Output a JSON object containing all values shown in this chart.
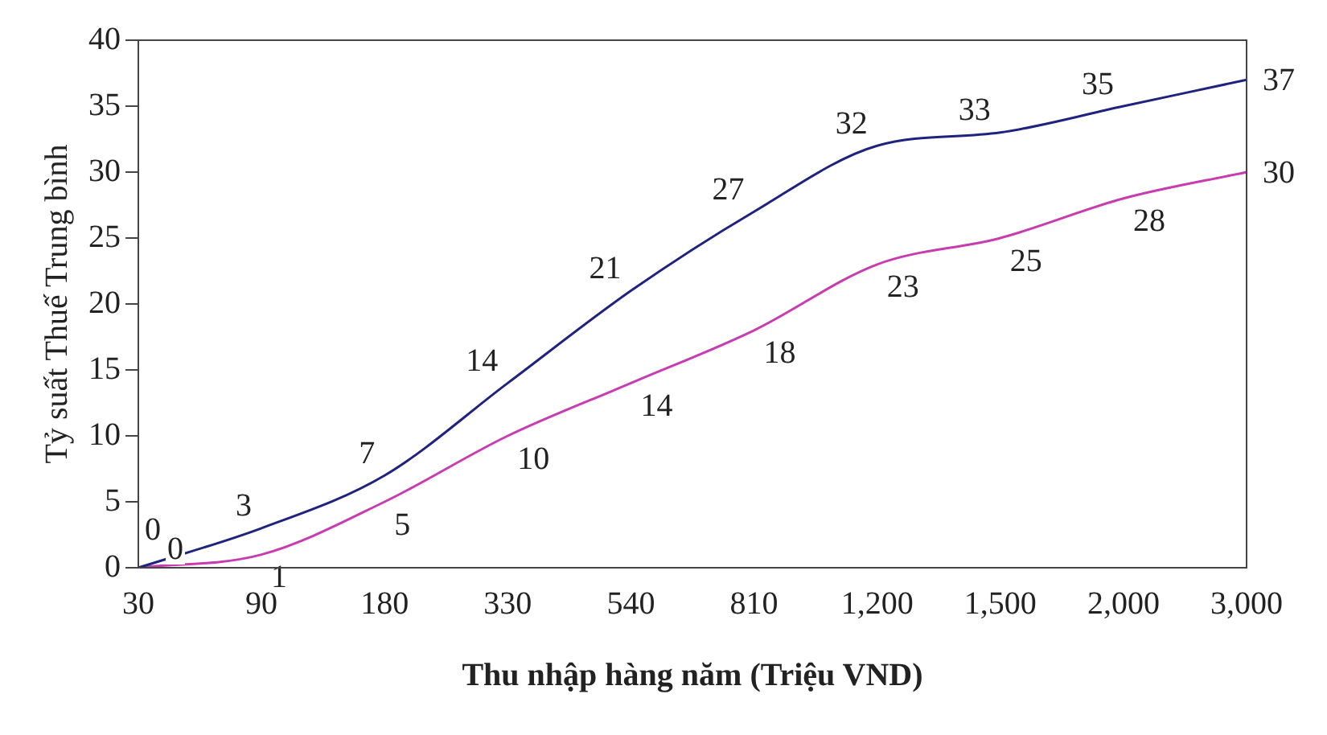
{
  "chart_data": {
    "type": "line",
    "xlabel": "Thu nhập hàng năm (Triệu VND)",
    "ylabel": "Tỷ suất Thuế Trung bình",
    "categories": [
      "30",
      "90",
      "180",
      "330",
      "540",
      "810",
      "1,200",
      "1,500",
      "2,000",
      "3,000"
    ],
    "series": [
      {
        "color": "#1f2380",
        "values": [
          0,
          3,
          7,
          14,
          21,
          27,
          32,
          33,
          35,
          37
        ]
      },
      {
        "color": "#c83cb0",
        "values": [
          0,
          1,
          5,
          10,
          14,
          18,
          23,
          25,
          28,
          30
        ]
      }
    ],
    "ylim": [
      0,
      40
    ],
    "yticks": [
      0,
      5,
      10,
      15,
      20,
      25,
      30,
      35,
      40
    ],
    "grid": false,
    "legend": false,
    "marker": "none",
    "line_style": "solid",
    "data_labels": true
  }
}
